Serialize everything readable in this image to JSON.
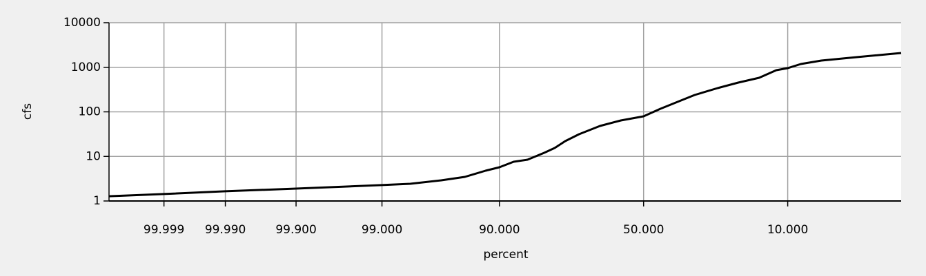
{
  "chart_data": {
    "type": "line",
    "x_label": "percent",
    "y_label": "cfs",
    "x_scale": "probability",
    "y_scale": "log",
    "grid": true,
    "color": "#000000",
    "xlim": [
      99.9999,
      1.1
    ],
    "ylim": [
      1,
      10000
    ],
    "xticks": [
      99.999,
      {
        "value": 99.99,
        "label": "99.990"
      },
      {
        "value": 99.9,
        "label": "99.900"
      },
      {
        "value": 99,
        "label": "99.000"
      },
      {
        "value": 90,
        "label": "90.000"
      },
      {
        "value": 50,
        "label": "50.000"
      },
      {
        "value": 10,
        "label": "10.000"
      }
    ],
    "yticks": [
      1,
      10,
      100,
      1000,
      10000
    ],
    "x": [
      99.9999,
      99.999,
      99.99,
      99.9,
      99.0,
      98.1,
      96.4,
      94.4,
      92.0,
      90.0,
      87.6,
      84.9,
      81.1,
      78.5,
      75.7,
      71.7,
      65.1,
      58.0,
      50.0,
      44.1,
      38.2,
      32.5,
      25.5,
      20.0,
      15.2,
      11.9,
      10.0,
      8.1,
      5.7,
      2.9,
      1.1
    ],
    "values": [
      1.28,
      1.43,
      1.65,
      1.9,
      2.27,
      2.43,
      2.91,
      3.47,
      4.78,
      5.71,
      7.59,
      8.45,
      12.1,
      15.5,
      22.1,
      31.5,
      48.2,
      64.1,
      79.4,
      117,
      167,
      239,
      341,
      453,
      581,
      860,
      957,
      1183,
      1415,
      1690,
      2091
    ]
  }
}
